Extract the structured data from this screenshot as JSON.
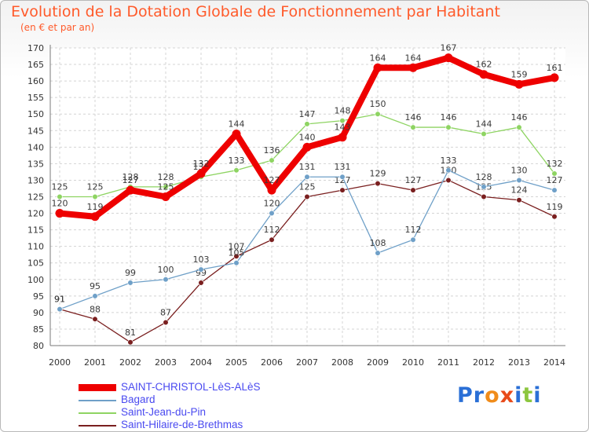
{
  "chart_data": {
    "type": "line",
    "title": "Evolution de la Dotation Globale de Fonctionnement par Habitant",
    "subtitle": "(en € et par an)",
    "xlabel": "",
    "ylabel": "",
    "x": [
      "2000",
      "2001",
      "2002",
      "2003",
      "2004",
      "2005",
      "2006",
      "2007",
      "2008",
      "2009",
      "2010",
      "2011",
      "2012",
      "2013",
      "2014"
    ],
    "ylim": [
      80,
      170
    ],
    "yticks": [
      80,
      85,
      90,
      95,
      100,
      105,
      110,
      115,
      120,
      125,
      130,
      135,
      140,
      145,
      150,
      155,
      160,
      165,
      170
    ],
    "grid": true,
    "legend_position": "bottom-left",
    "series": [
      {
        "name": "Saint-Hilaire-de-Brethmas",
        "color": "#7a1f1f",
        "values": [
          91,
          88,
          81,
          87,
          99,
          107,
          112,
          125,
          127,
          129,
          127,
          130,
          125,
          124,
          119
        ]
      },
      {
        "name": "Bagard",
        "color": "#6fa0c8",
        "values": [
          91,
          95,
          99,
          100,
          103,
          105,
          120,
          131,
          131,
          108,
          112,
          133,
          128,
          130,
          127
        ]
      },
      {
        "name": "Saint-Jean-du-Pin",
        "color": "#8ed462",
        "values": [
          125,
          125,
          128,
          128,
          131,
          133,
          136,
          147,
          148,
          150,
          146,
          146,
          144,
          146,
          132
        ]
      },
      {
        "name": "SAINT-CHRISTOL-LèS-ALèS",
        "color": "#ee0000",
        "values": [
          120,
          119,
          127,
          125,
          132,
          144,
          127,
          140,
          143,
          164,
          164,
          167,
          162,
          159,
          161
        ]
      }
    ]
  },
  "legend": [
    {
      "label": "SAINT-CHRISTOL-LèS-ALèS",
      "color": "#ee0000"
    },
    {
      "label": "Bagard",
      "color": "#6fa0c8"
    },
    {
      "label": "Saint-Jean-du-Pin",
      "color": "#8ed462"
    },
    {
      "label": "Saint-Hilaire-de-Brethmas",
      "color": "#7a1f1f"
    }
  ],
  "brand": {
    "text": "Proxiti",
    "letters": [
      "P",
      "r",
      "o",
      "x",
      "i",
      "t",
      "i"
    ],
    "colors": [
      "#2a6fd6",
      "#2a6fd6",
      "#f08c1a",
      "#e84a1a",
      "#2a6fd6",
      "#8cc63f",
      "#2a6fd6"
    ]
  }
}
